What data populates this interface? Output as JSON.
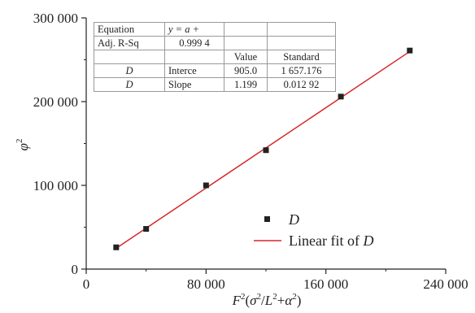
{
  "chart_data": {
    "type": "scatter",
    "xlabel_parts": [
      "F",
      "2",
      "(",
      "σ",
      "2",
      "/",
      "L",
      "2",
      "+",
      "α",
      "2",
      ")"
    ],
    "ylabel_parts": [
      "φ",
      "2"
    ],
    "xlim": [
      0,
      240000
    ],
    "ylim": [
      0,
      300000
    ],
    "x_ticks": [
      0,
      80000,
      160000,
      240000
    ],
    "x_tick_labels": [
      "0",
      "80 000",
      "160 000",
      "240 000"
    ],
    "y_ticks": [
      0,
      100000,
      200000,
      300000
    ],
    "y_tick_labels": [
      "0",
      "100 000",
      "200 000",
      "300 000"
    ],
    "series": [
      {
        "name": "D",
        "marker": "square",
        "color": "#222222",
        "x": [
          20000,
          40000,
          80000,
          120000,
          170000,
          216000
        ],
        "y": [
          26000,
          48000,
          100000,
          142000,
          206000,
          261000
        ]
      }
    ],
    "fit": {
      "name": "Linear fit of D",
      "color": "#d62728",
      "intercept": 905.0,
      "slope": 1.199,
      "x_range": [
        20000,
        216000
      ]
    },
    "legend": {
      "position": "bottom-right",
      "entries": [
        "D",
        "Linear fit of D"
      ]
    },
    "fit_table": {
      "rows": [
        [
          "Equation",
          "y = a +",
          "",
          ""
        ],
        [
          "Adj. R-Sq",
          "0.999 4",
          "",
          ""
        ],
        [
          "",
          "",
          "Value",
          "Standard"
        ],
        [
          "D",
          "Interce",
          "905.0",
          "1 657.176"
        ],
        [
          "D",
          "Slope",
          "1.199",
          "0.012 92"
        ]
      ]
    }
  }
}
